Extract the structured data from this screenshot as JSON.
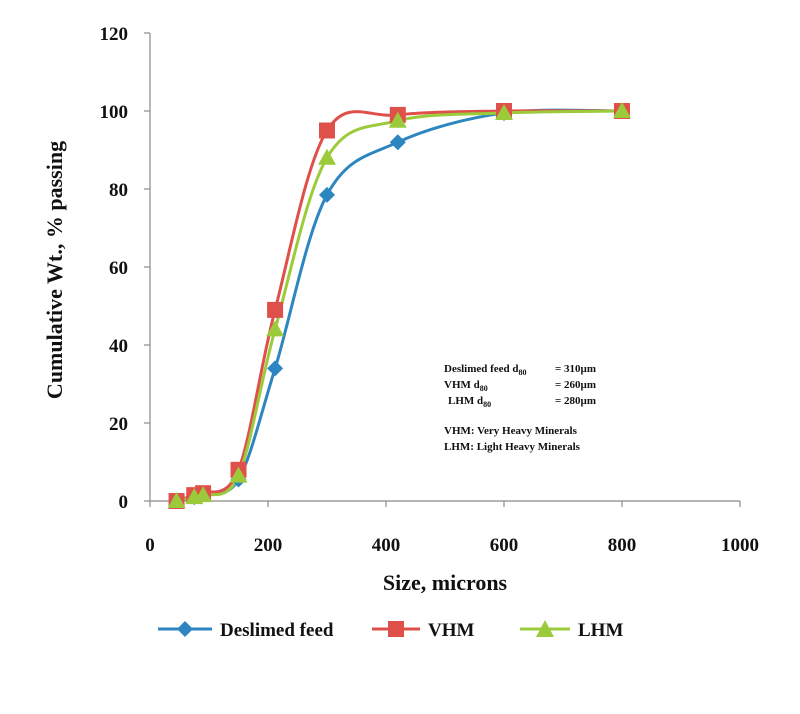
{
  "chart_data": {
    "type": "scatter",
    "title": "",
    "xlabel": "Size, microns",
    "ylabel": "Cumulative Wt., % passing",
    "xlim": [
      0,
      1000
    ],
    "ylim": [
      0,
      120
    ],
    "x_ticks": [
      "0",
      "200",
      "400",
      "600",
      "800",
      "1000"
    ],
    "y_ticks": [
      "0",
      "20",
      "40",
      "60",
      "80",
      "100",
      "120"
    ],
    "grid": false,
    "legend_position": "bottom",
    "smoothed_lines": true,
    "series": [
      {
        "name": "Deslimed feed",
        "color": "#2E86C1",
        "marker": "diamond",
        "x": [
          45,
          75,
          90,
          150,
          212,
          300,
          420,
          600,
          800
        ],
        "y": [
          0,
          1,
          2,
          5.5,
          34,
          78.5,
          92,
          99.5,
          100
        ]
      },
      {
        "name": "VHM",
        "color": "#E0504A",
        "marker": "square",
        "x": [
          45,
          75,
          90,
          150,
          212,
          300,
          420,
          600,
          800
        ],
        "y": [
          0,
          1.5,
          2,
          8,
          49,
          95,
          99,
          100,
          100
        ]
      },
      {
        "name": "LHM",
        "color": "#9BCB3B",
        "marker": "triangle",
        "x": [
          45,
          75,
          90,
          150,
          212,
          300,
          420,
          600,
          800
        ],
        "y": [
          0,
          1,
          1.5,
          6.5,
          44,
          88,
          97.5,
          99.5,
          100
        ]
      }
    ],
    "annotations": {
      "d80_lines": [
        {
          "label": "Deslimed feed d",
          "sub": "80",
          "value": "= 310µm"
        },
        {
          "label": "VHM d",
          "sub": "80",
          "value": "= 260µm"
        },
        {
          "label": "LHM d",
          "sub": "80",
          "value": "= 280µm"
        }
      ],
      "notes": [
        "VHM: Very Heavy Minerals",
        "LHM: Light Heavy Minerals"
      ]
    }
  }
}
